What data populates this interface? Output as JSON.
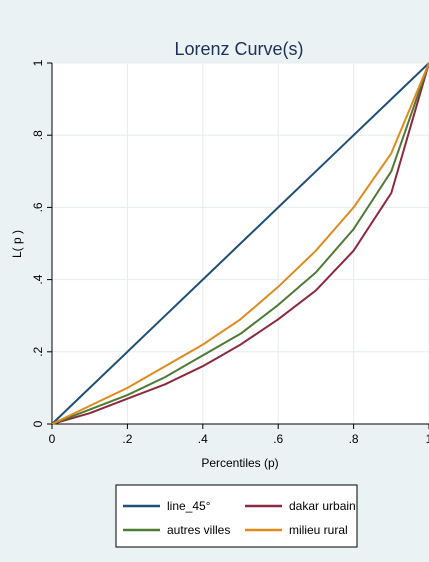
{
  "chart_data": {
    "type": "line",
    "title": "Lorenz Curve(s)",
    "xlabel": "Percentiles (p)",
    "ylabel": "L( p )",
    "xlim": [
      0,
      1
    ],
    "ylim": [
      0,
      1
    ],
    "x_ticks": [
      0,
      0.2,
      0.4,
      0.6,
      0.8,
      1
    ],
    "x_tick_labels": [
      "0",
      ".2",
      ".4",
      ".6",
      ".8",
      "1"
    ],
    "y_ticks": [
      0,
      0.2,
      0.4,
      0.6,
      0.8,
      1
    ],
    "y_tick_labels": [
      "0",
      ".2",
      ".4",
      ".6",
      ".8",
      "1"
    ],
    "grid": true,
    "legend_position": "bottom",
    "x": [
      0,
      0.1,
      0.2,
      0.3,
      0.4,
      0.5,
      0.6,
      0.7,
      0.8,
      0.9,
      1
    ],
    "series": [
      {
        "name": "line_45°",
        "color": "#1f4e79",
        "values": [
          0,
          0.1,
          0.2,
          0.3,
          0.4,
          0.5,
          0.6,
          0.7,
          0.8,
          0.9,
          1
        ]
      },
      {
        "name": "dakar urbain",
        "color": "#8b2a3f",
        "values": [
          0,
          0.03,
          0.07,
          0.11,
          0.16,
          0.22,
          0.29,
          0.37,
          0.48,
          0.64,
          1
        ]
      },
      {
        "name": "autres villes",
        "color": "#4f7a35",
        "values": [
          0,
          0.04,
          0.08,
          0.13,
          0.19,
          0.25,
          0.33,
          0.42,
          0.54,
          0.7,
          1
        ]
      },
      {
        "name": "milieu rural",
        "color": "#e08a1e",
        "values": [
          0,
          0.05,
          0.1,
          0.16,
          0.22,
          0.29,
          0.38,
          0.48,
          0.6,
          0.75,
          1
        ]
      }
    ]
  }
}
